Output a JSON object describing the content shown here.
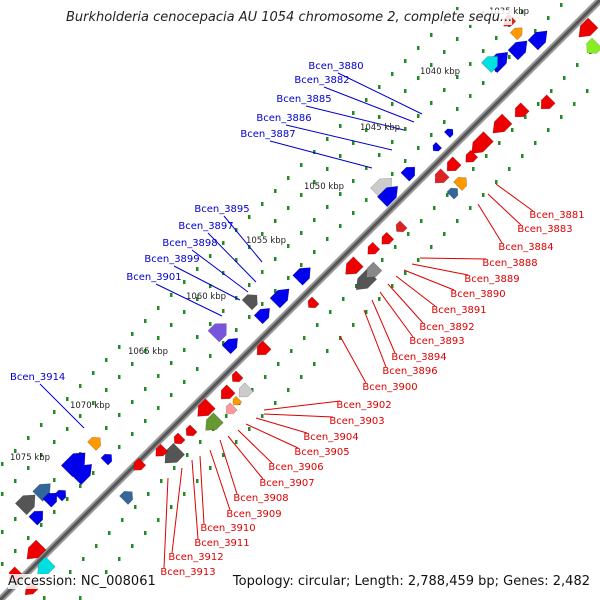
{
  "header": {
    "title": "Burkholderia cenocepacia AU 1054 chromosome 2, complete sequ..."
  },
  "footer": {
    "accession": "Accession: NC_008061",
    "summary": "Topology: circular; Length: 2,788,459 bp; Genes: 2,482"
  },
  "colors": {
    "forward_label": "#0000cc",
    "reverse_label": "#dd0000",
    "backbone": "#555555",
    "tick": "#228b22"
  },
  "kbp_labels": [
    "1035 kbp",
    "1040 kbp",
    "1045 kbp",
    "1050 kbp",
    "1055 kbp",
    "1060 kbp",
    "1065 kbp",
    "1070 kbp",
    "1075 kbp"
  ],
  "forward_genes": [
    "Bcen_3880",
    "Bcen_3882",
    "Bcen_3885",
    "Bcen_3886",
    "Bcen_3887",
    "Bcen_3895",
    "Bcen_3897",
    "Bcen_3898",
    "Bcen_3899",
    "Bcen_3901",
    "Bcen_3914"
  ],
  "reverse_genes": [
    "Bcen_3881",
    "Bcen_3883",
    "Bcen_3884",
    "Bcen_3888",
    "Bcen_3889",
    "Bcen_3890",
    "Bcen_3891",
    "Bcen_3892",
    "Bcen_3893",
    "Bcen_3894",
    "Bcen_3896",
    "Bcen_3900",
    "Bcen_3902",
    "Bcen_3903",
    "Bcen_3904",
    "Bcen_3905",
    "Bcen_3906",
    "Bcen_3907",
    "Bcen_3908",
    "Bcen_3909",
    "Bcen_3910",
    "Bcen_3911",
    "Bcen_3912",
    "Bcen_3913"
  ]
}
